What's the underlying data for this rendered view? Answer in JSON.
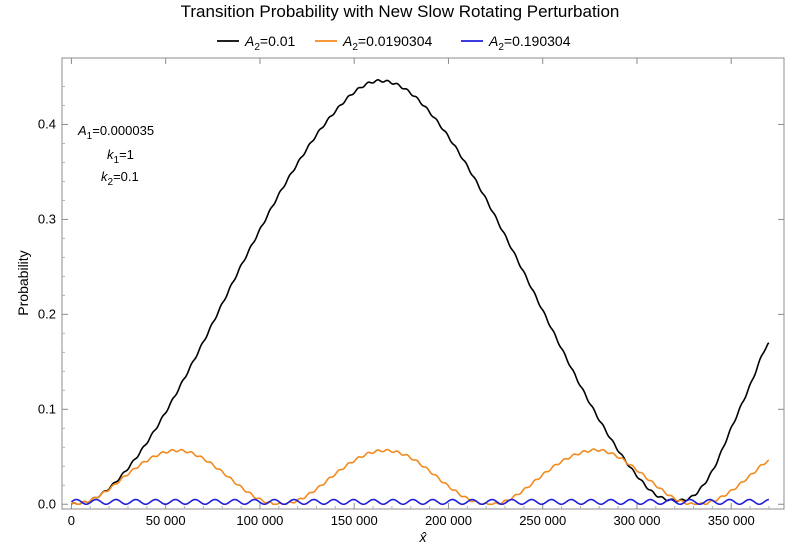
{
  "chart_data": {
    "type": "line",
    "title": "Transition Probability with New Slow Rotating Perturbation",
    "xlabel": "x̂",
    "ylabel": "Probability",
    "xlim": [
      -5000,
      378000
    ],
    "ylim": [
      -0.005,
      0.47
    ],
    "grid": false,
    "legend_position": "top-center",
    "x_ticks": [
      0,
      50000,
      100000,
      150000,
      200000,
      250000,
      300000,
      350000
    ],
    "x_tick_labels": [
      "0",
      "50 000",
      "100 000",
      "150 000",
      "200 000",
      "250 000",
      "300 000",
      "350 000"
    ],
    "y_ticks": [
      0,
      0.1,
      0.2,
      0.3,
      0.4
    ],
    "y_tick_labels": [
      "0.0",
      "0.1",
      "0.2",
      "0.3",
      "0.4"
    ],
    "annotations": [
      {
        "base": "A",
        "sub": "1",
        "rest": "=0.000035"
      },
      {
        "base": "k",
        "sub": "1",
        "rest": "=1"
      },
      {
        "base": "k",
        "sub": "2",
        "rest": "=0.1"
      }
    ],
    "series": [
      {
        "legend_base": "A",
        "legend_sub": "2",
        "legend_rest": "=0.01",
        "color": "#000000",
        "x": [
          0,
          10000,
          20000,
          30000,
          40000,
          50000,
          60000,
          70000,
          80000,
          90000,
          100000,
          110000,
          120000,
          130000,
          140000,
          150000,
          160000,
          170000,
          180000,
          190000,
          200000,
          210000,
          220000,
          230000,
          240000,
          250000,
          260000,
          270000,
          280000,
          290000,
          300000,
          310000,
          320000,
          330000,
          340000,
          350000,
          360000,
          370000
        ],
        "y": [
          0.0,
          0.004,
          0.017,
          0.038,
          0.065,
          0.097,
          0.133,
          0.171,
          0.211,
          0.251,
          0.289,
          0.326,
          0.359,
          0.389,
          0.414,
          0.434,
          0.445,
          0.444,
          0.433,
          0.413,
          0.387,
          0.356,
          0.321,
          0.283,
          0.244,
          0.204,
          0.164,
          0.125,
          0.089,
          0.057,
          0.03,
          0.01,
          0.004,
          0.009,
          0.035,
          0.08,
          0.125,
          0.17
        ]
      },
      {
        "legend_base": "A",
        "legend_sub": "2",
        "legend_rest": "=0.0190304",
        "color": "#f28a1e",
        "x": [
          0,
          10000,
          20000,
          30000,
          40000,
          50000,
          60000,
          70000,
          80000,
          90000,
          100000,
          110000,
          120000,
          130000,
          140000,
          150000,
          160000,
          170000,
          180000,
          190000,
          200000,
          210000,
          220000,
          230000,
          240000,
          250000,
          260000,
          270000,
          280000,
          290000,
          300000,
          310000,
          320000,
          330000,
          340000,
          350000,
          360000,
          370000
        ],
        "y": [
          0.0,
          0.004,
          0.016,
          0.032,
          0.046,
          0.055,
          0.056,
          0.048,
          0.034,
          0.018,
          0.005,
          0.0,
          0.004,
          0.016,
          0.032,
          0.046,
          0.055,
          0.056,
          0.049,
          0.035,
          0.019,
          0.006,
          0.0,
          0.003,
          0.015,
          0.031,
          0.045,
          0.054,
          0.057,
          0.05,
          0.036,
          0.02,
          0.006,
          0.0,
          0.003,
          0.014,
          0.03,
          0.046
        ]
      },
      {
        "legend_base": "A",
        "legend_sub": "2",
        "legend_rest": "=0.190304",
        "color": "#1f1fdb",
        "x": [
          0,
          370000
        ],
        "y": [
          0.0025,
          0.0025
        ],
        "oscillation_amplitude": 0.0025,
        "oscillation_period": 10500
      }
    ]
  }
}
